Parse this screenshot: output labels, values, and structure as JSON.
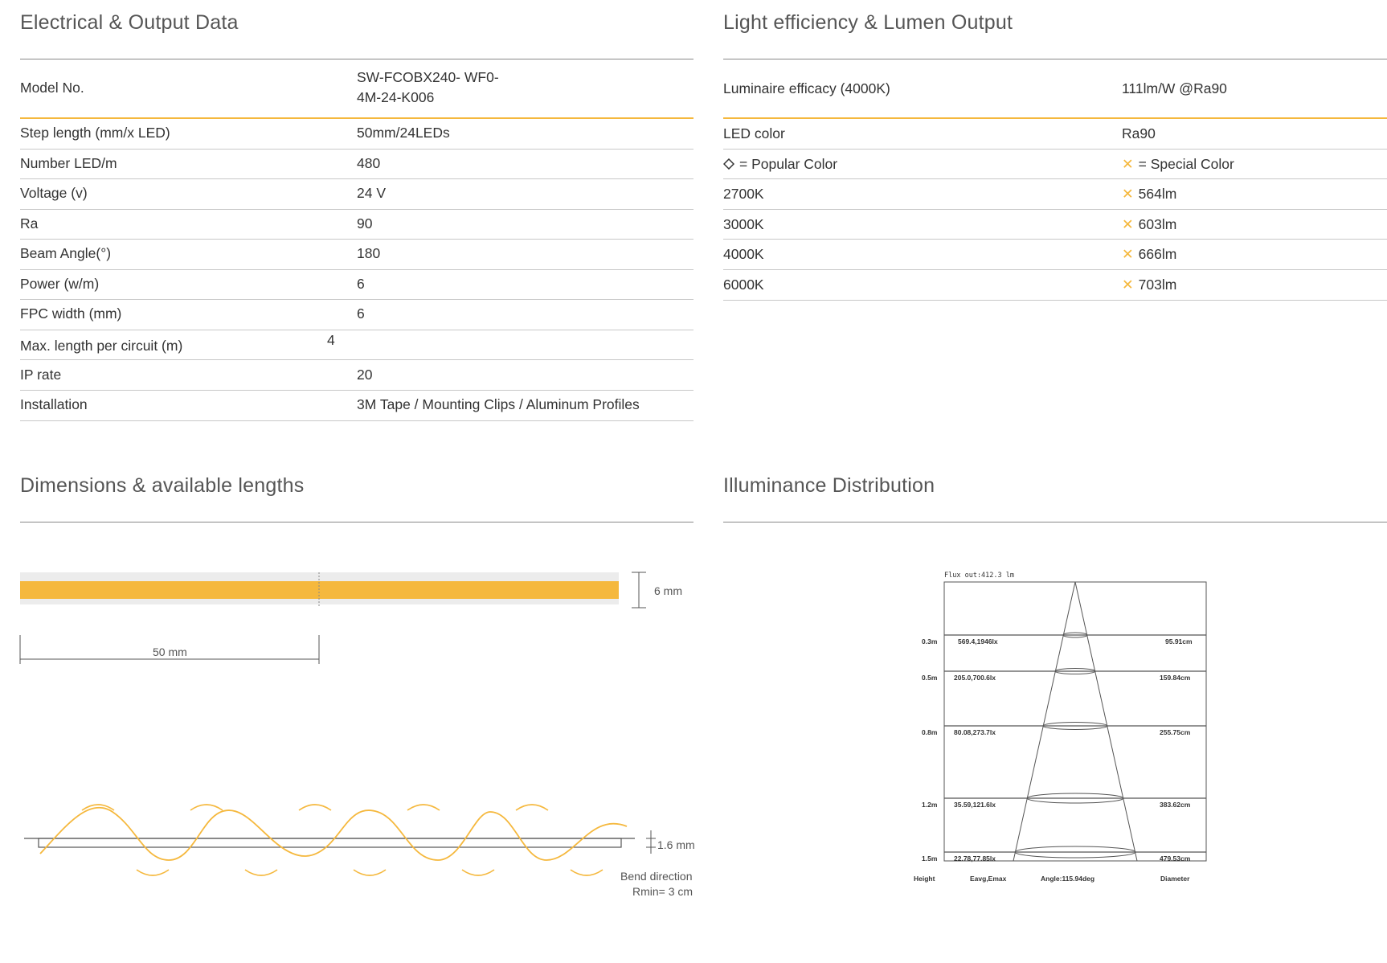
{
  "electrical": {
    "title": "Electrical & Output Data",
    "rows": [
      {
        "label": "Model No.",
        "value": "SW-FCOBX240- WF0-4M-24-K006"
      },
      {
        "label": "Step length (mm/x LED)",
        "value": "50mm/24LEDs"
      },
      {
        "label": "Number LED/m",
        "value": "480"
      },
      {
        "label": "Voltage (v)",
        "value": "24 V"
      },
      {
        "label": "Ra",
        "value": "90"
      },
      {
        "label": "Beam Angle(°)",
        "value": "180"
      },
      {
        "label": "Power (w/m)",
        "value": "6"
      },
      {
        "label": "FPC width (mm)",
        "value": "6"
      },
      {
        "label": "Max. length per circuit (m)",
        "value": "4"
      },
      {
        "label": "IP rate",
        "value": "20"
      },
      {
        "label": "Installation",
        "value": "3M Tape / Mounting Clips / Aluminum Profiles"
      }
    ]
  },
  "light": {
    "title": "Light efficiency & Lumen Output",
    "rows": [
      {
        "label": "Luminaire efficacy (4000K)",
        "value": "111lm/W @Ra90"
      },
      {
        "label": "LED color",
        "value": "Ra90"
      },
      {
        "label": "= Popular Color",
        "value": "= Special Color"
      },
      {
        "label": "2700K",
        "value": "564lm"
      },
      {
        "label": "3000K",
        "value": "603lm"
      },
      {
        "label": "4000K",
        "value": "666lm"
      },
      {
        "label": "6000K",
        "value": "703lm"
      }
    ],
    "popular_icon": "diamond-icon",
    "special_icon": "cross-icon",
    "accent_color": "#f5b83d"
  },
  "dimensions": {
    "title": "Dimensions & available lengths",
    "width_label": "6 mm",
    "step_label": "50 mm",
    "thickness_label": "1.6 mm",
    "bend_label": "Bend direction",
    "rmin_label": "Rmin= 3 cm",
    "strip_color": "#f5b83d"
  },
  "illuminance": {
    "title": "Illuminance Distribution",
    "flux": "Flux out:412.3 lm",
    "rows": [
      {
        "height": "0.3m",
        "values": "569.4,1946lx",
        "diameter": "95.91cm"
      },
      {
        "height": "0.5m",
        "values": "205.0,700.6lx",
        "diameter": "159.84cm"
      },
      {
        "height": "0.8m",
        "values": "80.08,273.7lx",
        "diameter": "255.75cm"
      },
      {
        "height": "1.2m",
        "values": "35.59,121.6lx",
        "diameter": "383.62cm"
      },
      {
        "height": "1.5m",
        "values": "22.78,77.85lx",
        "diameter": "479.53cm"
      }
    ],
    "footer": {
      "height": "Height",
      "eavg": "Eavg,Emax",
      "angle": "Angle:115.94deg",
      "diameter": "Diameter"
    }
  }
}
